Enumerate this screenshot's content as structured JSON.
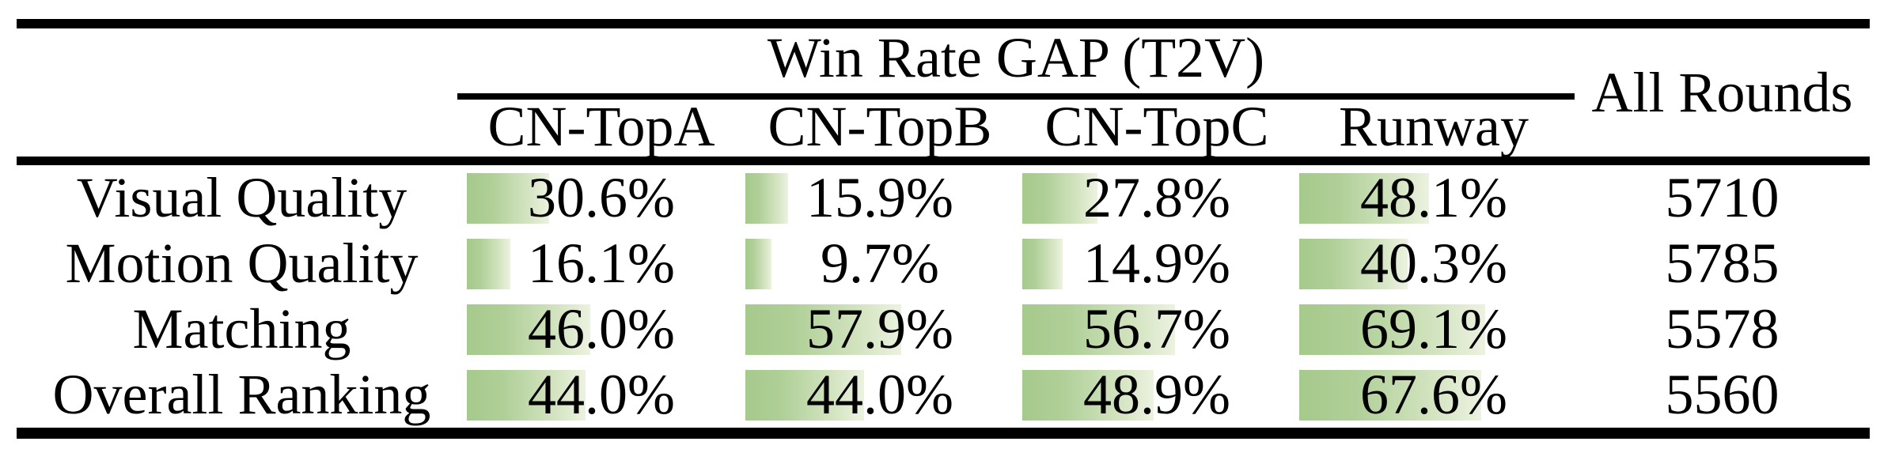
{
  "table": {
    "header": {
      "group_title": "Win Rate GAP (T2V)",
      "all_rounds_label": "All Rounds",
      "columns": [
        "CN-TopA",
        "CN-TopB",
        "CN-TopC",
        "Runway"
      ]
    },
    "rows": [
      {
        "label": "Visual Quality",
        "cells": [
          {
            "display": "30.6%",
            "value": 30.6
          },
          {
            "display": "15.9%",
            "value": 15.9
          },
          {
            "display": "27.8%",
            "value": 27.8
          },
          {
            "display": "48.1%",
            "value": 48.1
          }
        ],
        "all_rounds": "5710"
      },
      {
        "label": "Motion Quality",
        "cells": [
          {
            "display": "16.1%",
            "value": 16.1
          },
          {
            "display": "9.7%",
            "value": 9.7
          },
          {
            "display": "14.9%",
            "value": 14.9
          },
          {
            "display": "40.3%",
            "value": 40.3
          }
        ],
        "all_rounds": "5785"
      },
      {
        "label": "Matching",
        "cells": [
          {
            "display": "46.0%",
            "value": 46.0
          },
          {
            "display": "57.9%",
            "value": 57.9
          },
          {
            "display": "56.7%",
            "value": 56.7
          },
          {
            "display": "69.1%",
            "value": 69.1
          }
        ],
        "all_rounds": "5578"
      },
      {
        "label": "Overall Ranking",
        "cells": [
          {
            "display": "44.0%",
            "value": 44.0
          },
          {
            "display": "44.0%",
            "value": 44.0
          },
          {
            "display": "48.9%",
            "value": 48.9
          },
          {
            "display": "67.6%",
            "value": 67.6
          }
        ],
        "all_rounds": "5560"
      }
    ]
  },
  "colors": {
    "bar_gradient_start": "#a6c98c",
    "bar_gradient_end": "#ecf2e0",
    "rule": "#000000",
    "background": "#ffffff",
    "text": "#000000"
  },
  "chart_data": {
    "type": "table",
    "title": "Win Rate GAP (T2V)",
    "columns": [
      "CN-TopA",
      "CN-TopB",
      "CN-TopC",
      "Runway",
      "All Rounds"
    ],
    "row_labels": [
      "Visual Quality",
      "Motion Quality",
      "Matching",
      "Overall Ranking"
    ],
    "win_rate_gap_percent": [
      [
        30.6,
        15.9,
        27.8,
        48.1
      ],
      [
        16.1,
        9.7,
        14.9,
        40.3
      ],
      [
        46.0,
        57.9,
        56.7,
        69.1
      ],
      [
        44.0,
        44.0,
        48.9,
        67.6
      ]
    ],
    "all_rounds": [
      5710,
      5785,
      5578,
      5560
    ],
    "notes": "Green horizontal data bars behind each percentage, bar width proportional to value (100% = full cell width)"
  }
}
